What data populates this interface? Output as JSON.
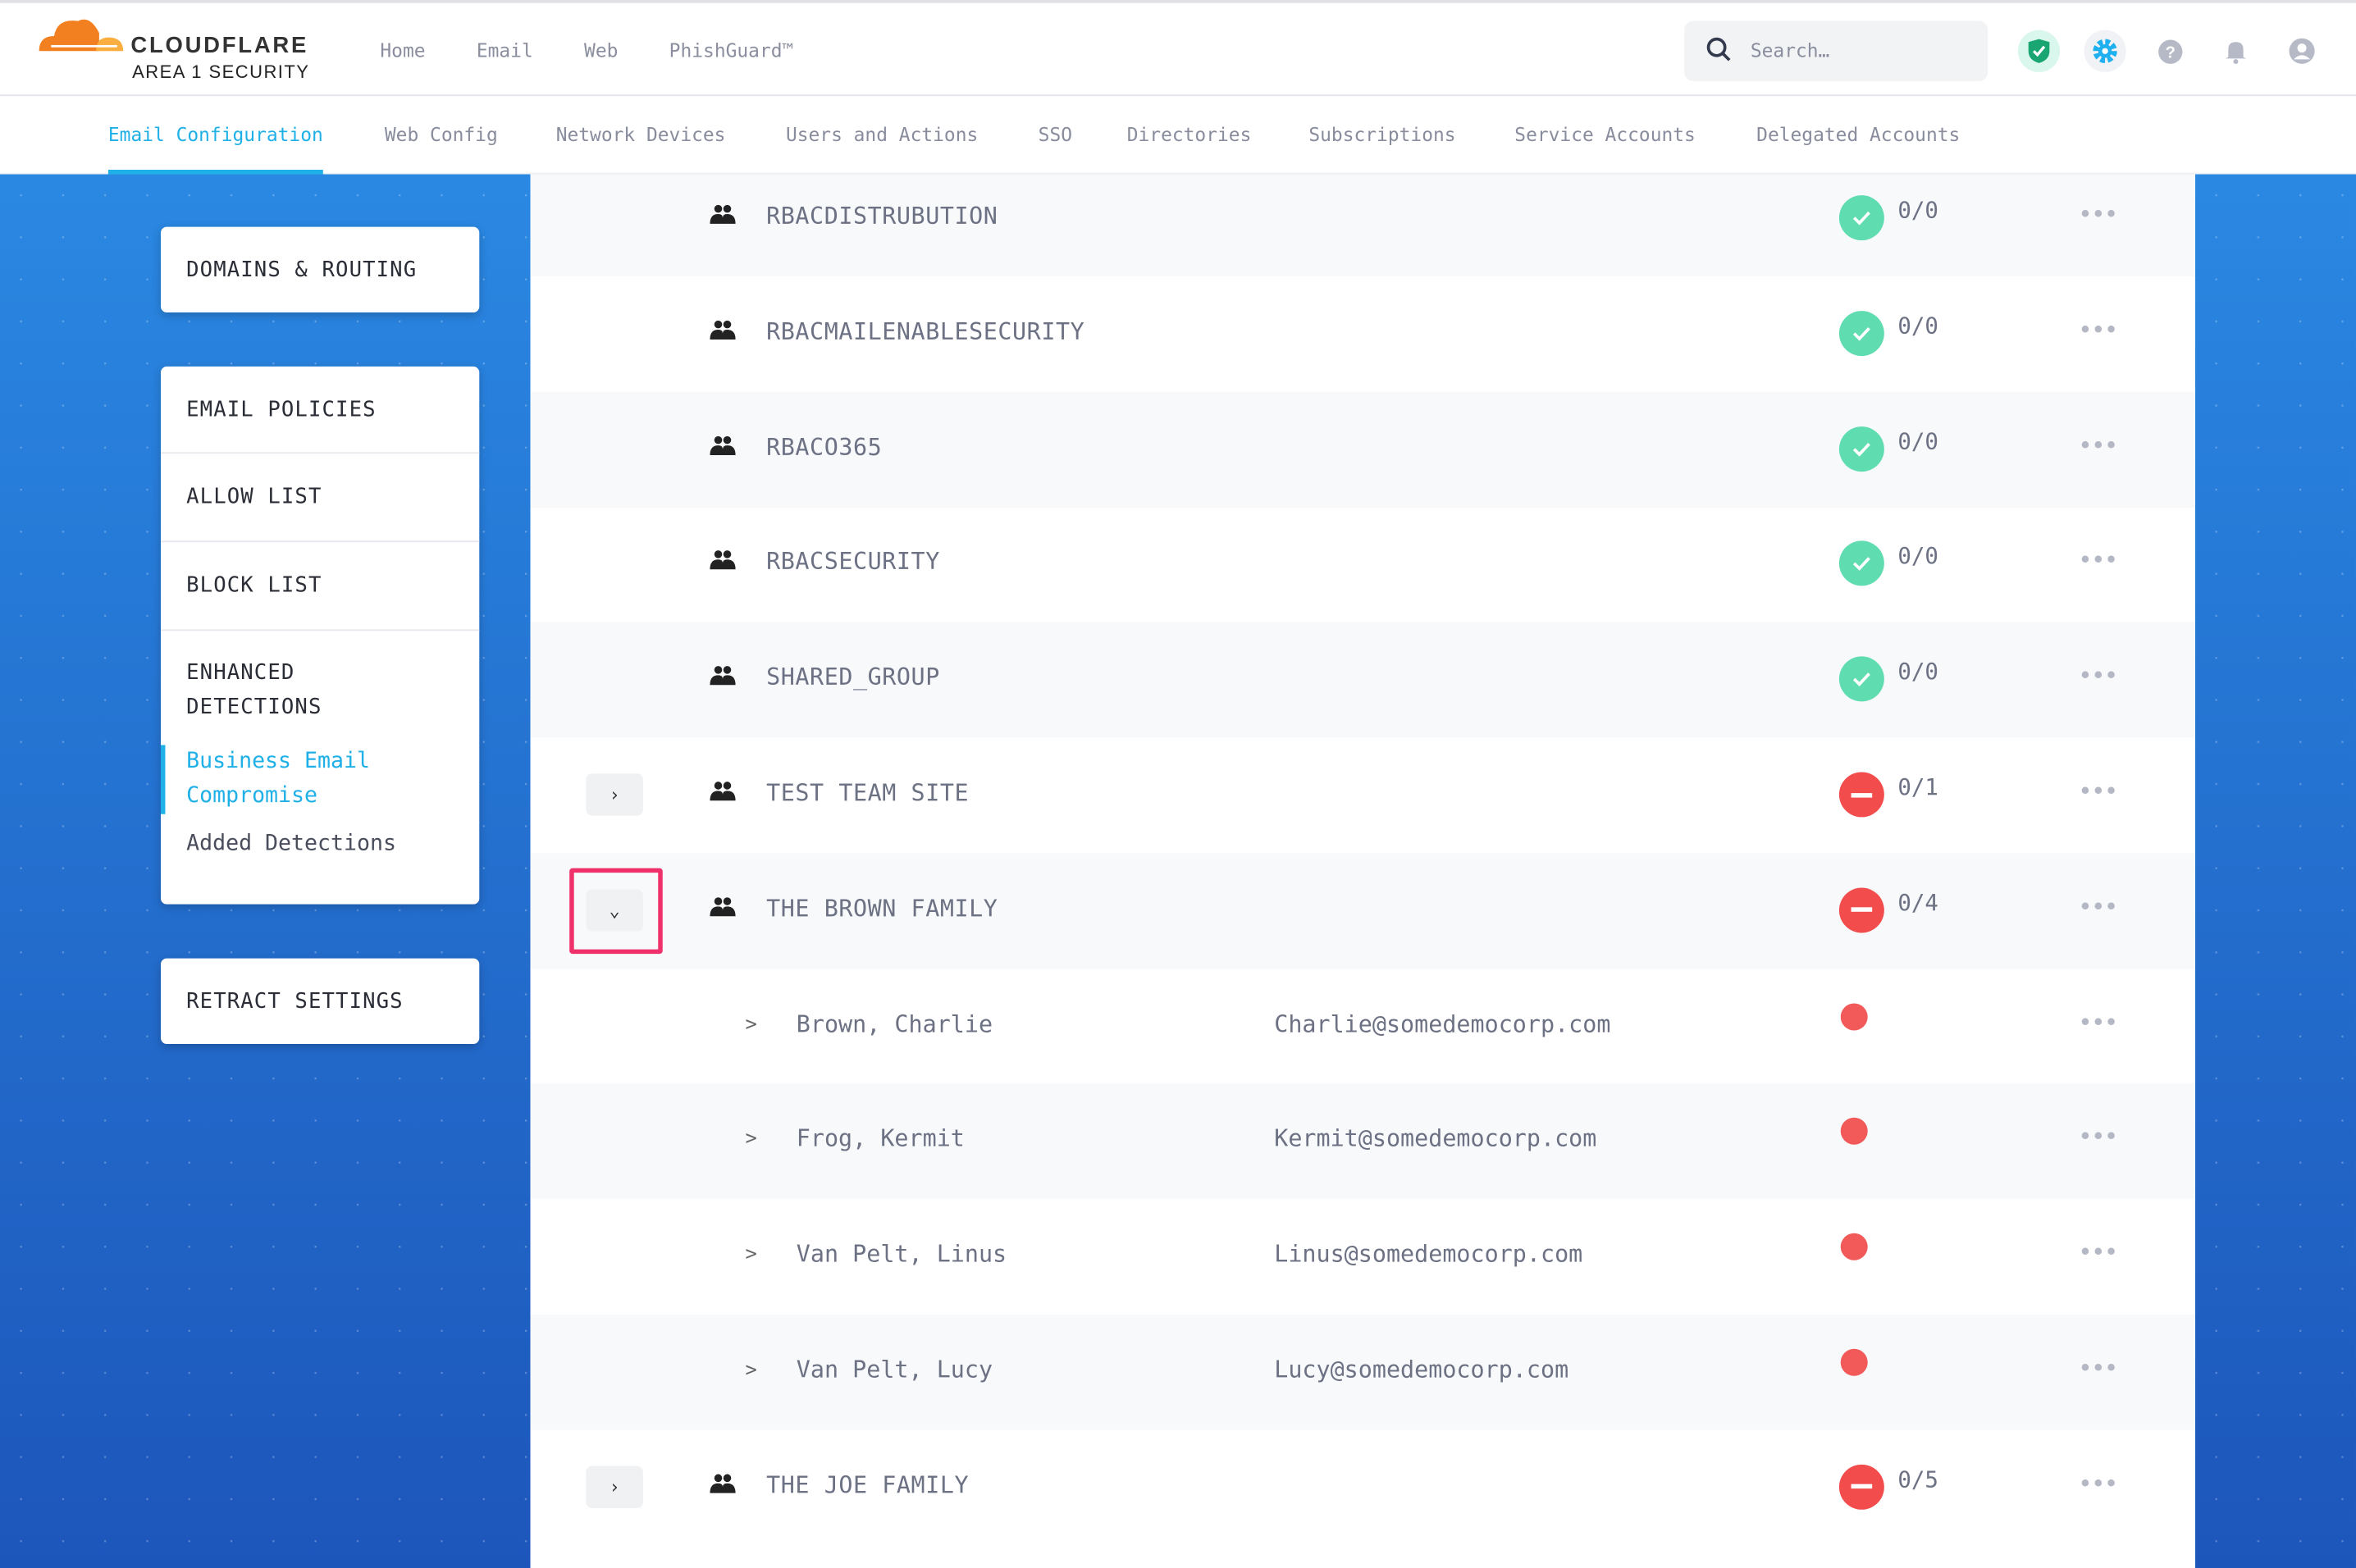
{
  "brand": {
    "name": "CLOUDFLARE",
    "product": "AREA 1 SECURITY"
  },
  "top_nav": [
    "Home",
    "Email",
    "Web",
    "PhishGuard™"
  ],
  "search": {
    "placeholder": "Search…"
  },
  "header_icons": [
    "shield-check-icon",
    "gear-icon",
    "help-icon",
    "bell-icon",
    "user-icon"
  ],
  "tabs": [
    {
      "label": "Email Configuration",
      "active": true
    },
    {
      "label": "Web Config"
    },
    {
      "label": "Network Devices"
    },
    {
      "label": "Users and Actions"
    },
    {
      "label": "SSO"
    },
    {
      "label": "Directories"
    },
    {
      "label": "Subscriptions"
    },
    {
      "label": "Service Accounts"
    },
    {
      "label": "Delegated Accounts"
    }
  ],
  "sidebar": {
    "domains": "DOMAINS & ROUTING",
    "email_policies": "EMAIL POLICIES",
    "allow_list": "ALLOW LIST",
    "block_list": "BLOCK LIST",
    "enhanced": "ENHANCED DETECTIONS",
    "bec": "Business Email Compromise",
    "added": "Added Detections",
    "retract": "RETRACT SETTINGS"
  },
  "colors": {
    "accent": "#1fb0e8",
    "ok": "#5fdcb0",
    "error": "#f24c4c",
    "highlight": "#f0306a"
  },
  "rows": [
    {
      "type": "group",
      "name": "RBACDISTRUBUTION",
      "status": "ok",
      "count": "0/0"
    },
    {
      "type": "group",
      "name": "RBACMAILENABLESECURITY",
      "status": "ok",
      "count": "0/0"
    },
    {
      "type": "group",
      "name": "RBACO365",
      "status": "ok",
      "count": "0/0"
    },
    {
      "type": "group",
      "name": "RBACSECURITY",
      "status": "ok",
      "count": "0/0"
    },
    {
      "type": "group",
      "name": "SHARED_GROUP",
      "status": "ok",
      "count": "0/0"
    },
    {
      "type": "group",
      "name": "TEST TEAM SITE",
      "status": "error",
      "count": "0/1",
      "expandable": true,
      "expanded": false
    },
    {
      "type": "group",
      "name": "THE BROWN FAMILY",
      "status": "error",
      "count": "0/4",
      "expandable": true,
      "expanded": true
    },
    {
      "type": "member",
      "name": "Brown, Charlie",
      "email": "Charlie@somedemocorp.com"
    },
    {
      "type": "member",
      "name": "Frog, Kermit",
      "email": "Kermit@somedemocorp.com"
    },
    {
      "type": "member",
      "name": "Van Pelt, Linus",
      "email": "Linus@somedemocorp.com"
    },
    {
      "type": "member",
      "name": "Van Pelt, Lucy",
      "email": "Lucy@somedemocorp.com"
    },
    {
      "type": "group",
      "name": "THE JOE FAMILY",
      "status": "error",
      "count": "0/5",
      "expandable": true,
      "expanded": false
    }
  ]
}
